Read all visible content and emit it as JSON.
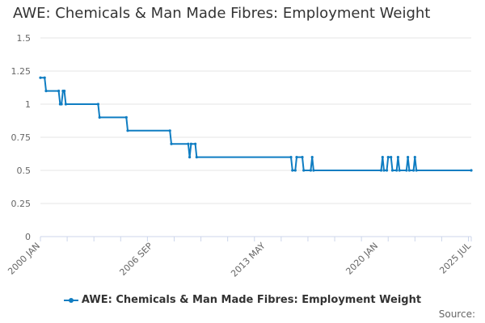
{
  "chart_data": {
    "type": "line",
    "title": "AWE: Chemicals & Man Made Fibres: Employment Weight",
    "ylim": [
      0,
      1.5
    ],
    "y_ticks": [
      "0",
      "0.25",
      "0.5",
      "0.75",
      "1",
      "1.25",
      "1.5"
    ],
    "x_ticks": [
      "2000 JAN",
      "2006 SEP",
      "2013 MAY",
      "2020 JAN",
      "2025 JUL"
    ],
    "x_range": [
      "2000-01",
      "2025-07"
    ],
    "grid": "horizontal",
    "legend_position": "bottom",
    "color": "#0f7dc2",
    "series": [
      {
        "name": "AWE: Chemicals & Man Made Fibres: Employment Weight",
        "points": [
          [
            "2000-01",
            1.2
          ],
          [
            "2000-04",
            1.2
          ],
          [
            "2000-05",
            1.1
          ],
          [
            "2001-02",
            1.1
          ],
          [
            "2001-03",
            1.0
          ],
          [
            "2001-04",
            1.0
          ],
          [
            "2001-05",
            1.1
          ],
          [
            "2001-06",
            1.1
          ],
          [
            "2001-07",
            1.0
          ],
          [
            "2003-06",
            1.0
          ],
          [
            "2003-07",
            0.9
          ],
          [
            "2005-02",
            0.9
          ],
          [
            "2005-03",
            0.8
          ],
          [
            "2007-09",
            0.8
          ],
          [
            "2007-10",
            0.7
          ],
          [
            "2008-10",
            0.7
          ],
          [
            "2008-11",
            0.6
          ],
          [
            "2008-12",
            0.7
          ],
          [
            "2009-03",
            0.7
          ],
          [
            "2009-04",
            0.6
          ],
          [
            "2014-11",
            0.6
          ],
          [
            "2014-12",
            0.5
          ],
          [
            "2015-02",
            0.5
          ],
          [
            "2015-03",
            0.6
          ],
          [
            "2015-07",
            0.6
          ],
          [
            "2015-08",
            0.5
          ],
          [
            "2016-01",
            0.5
          ],
          [
            "2016-02",
            0.6
          ],
          [
            "2016-03",
            0.5
          ],
          [
            "2020-03",
            0.5
          ],
          [
            "2020-04",
            0.6
          ],
          [
            "2020-05",
            0.5
          ],
          [
            "2020-07",
            0.5
          ],
          [
            "2020-08",
            0.6
          ],
          [
            "2020-10",
            0.6
          ],
          [
            "2020-11",
            0.5
          ],
          [
            "2021-02",
            0.5
          ],
          [
            "2021-03",
            0.6
          ],
          [
            "2021-04",
            0.5
          ],
          [
            "2021-09",
            0.5
          ],
          [
            "2021-10",
            0.6
          ],
          [
            "2021-11",
            0.5
          ],
          [
            "2022-02",
            0.5
          ],
          [
            "2022-03",
            0.6
          ],
          [
            "2022-04",
            0.5
          ],
          [
            "2025-07",
            0.5
          ]
        ]
      }
    ]
  },
  "legend": {
    "label": "AWE: Chemicals & Man Made Fibres: Employment Weight"
  },
  "footer": {
    "source": "Source:"
  }
}
